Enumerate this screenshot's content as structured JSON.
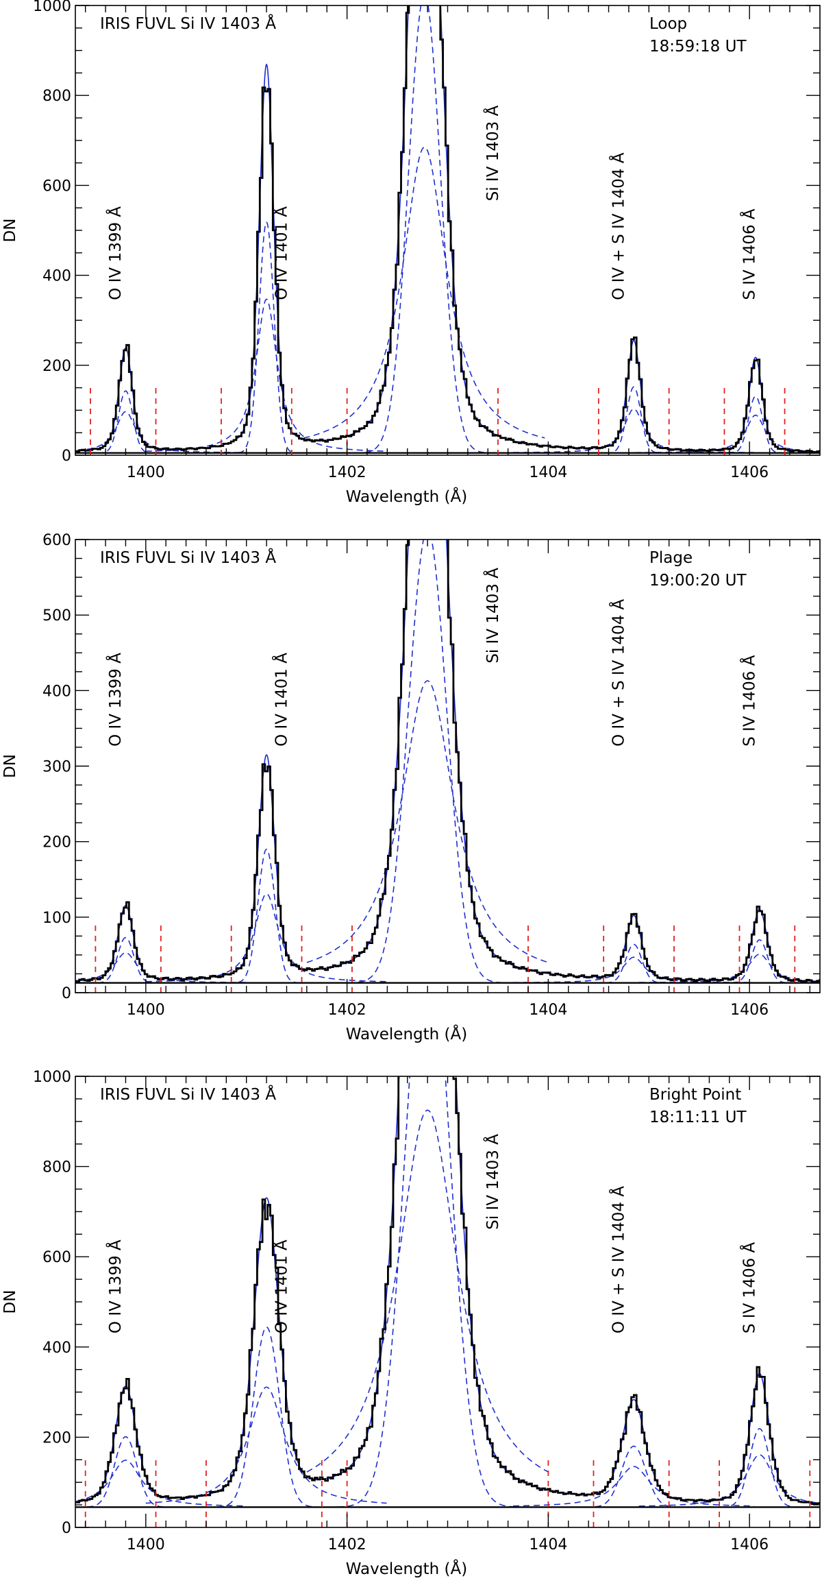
{
  "chart_data": [
    {
      "type": "line",
      "title": "IRIS FUVL Si IV 1403 Å",
      "region": "Loop",
      "time": "18:59:18 UT",
      "xlabel": "Wavelength (Å)",
      "ylabel": "DN",
      "xlim": [
        1399.3,
        1406.7
      ],
      "ylim": [
        0,
        1000
      ],
      "xticks": [
        1400,
        1402,
        1404,
        1406
      ],
      "yticks": [
        0,
        200,
        400,
        600,
        800,
        1000
      ],
      "baseline": 5,
      "fit_window_markers": [
        1399.45,
        1400.1,
        1400.75,
        1401.45,
        1402.0,
        1403.5,
        1404.5,
        1405.2,
        1405.75,
        1406.35
      ],
      "line_labels": [
        "O IV 1399 Å",
        "O IV 1401 Å",
        "Si IV 1403 Å",
        "O IV + S IV 1404 Å",
        "S IV 1406 Å"
      ],
      "line_components": [
        {
          "line": "O IV 1399 Å",
          "center": 1399.8,
          "peak": 230,
          "width": 0.07
        },
        {
          "line": "O IV 1401 Å",
          "center": 1401.2,
          "peak": 855,
          "width": 0.075
        },
        {
          "line": "Si IV 1403 Å",
          "center": 1402.77,
          "peak": 1700,
          "width": 0.16
        },
        {
          "line": "O IV + S IV 1404 Å",
          "center": 1404.85,
          "peak": 245,
          "width": 0.07
        },
        {
          "line": "S IV 1406 Å",
          "center": 1406.06,
          "peak": 210,
          "width": 0.07
        }
      ]
    },
    {
      "type": "line",
      "title": "IRIS FUVL Si IV 1403 Å",
      "region": "Plage",
      "time": "19:00:20 UT",
      "xlabel": "Wavelength (Å)",
      "ylabel": "DN",
      "xlim": [
        1399.3,
        1406.7
      ],
      "ylim": [
        0,
        600
      ],
      "xticks": [
        1400,
        1402,
        1404,
        1406
      ],
      "yticks": [
        0,
        100,
        200,
        300,
        400,
        500,
        600
      ],
      "baseline": 13,
      "fit_window_markers": [
        1399.5,
        1400.15,
        1400.85,
        1401.55,
        1402.05,
        1403.8,
        1404.55,
        1405.25,
        1405.9,
        1406.45
      ],
      "line_labels": [
        "O IV 1399 Å",
        "O IV 1401 Å",
        "Si IV 1403 Å",
        "O IV + S IV 1404 Å",
        "S IV 1406 Å"
      ],
      "line_components": [
        {
          "line": "O IV 1399 Å",
          "center": 1399.8,
          "peak": 100,
          "width": 0.08
        },
        {
          "line": "O IV 1401 Å",
          "center": 1401.2,
          "peak": 295,
          "width": 0.085
        },
        {
          "line": "Si IV 1403 Å",
          "center": 1402.8,
          "peak": 1000,
          "width": 0.19
        },
        {
          "line": "O IV + S IV 1404 Å",
          "center": 1404.85,
          "peak": 85,
          "width": 0.08
        },
        {
          "line": "S IV 1406 Å",
          "center": 1406.1,
          "peak": 95,
          "width": 0.08
        }
      ]
    },
    {
      "type": "line",
      "title": "IRIS FUVL Si IV 1403 Å",
      "region": "Bright Point",
      "time": "18:11:11 UT",
      "xlabel": "Wavelength (Å)",
      "ylabel": "DN",
      "xlim": [
        1399.3,
        1406.7
      ],
      "ylim": [
        0,
        1000
      ],
      "xticks": [
        1400,
        1402,
        1404,
        1406
      ],
      "yticks": [
        0,
        200,
        400,
        600,
        800,
        1000
      ],
      "baseline": 45,
      "fit_window_markers": [
        1399.4,
        1400.1,
        1400.6,
        1401.75,
        1402.0,
        1404.0,
        1404.45,
        1405.2,
        1405.7,
        1406.6
      ],
      "line_labels": [
        "O IV 1399 Å",
        "O IV 1401 Å",
        "Si IV 1403 Å",
        "O IV + S IV 1404 Å",
        "S IV 1406 Å"
      ],
      "line_components": [
        {
          "line": "O IV 1399 Å",
          "center": 1399.8,
          "peak": 260,
          "width": 0.11
        },
        {
          "line": "O IV 1401 Å",
          "center": 1401.2,
          "peak": 665,
          "width": 0.13
        },
        {
          "line": "Si IV 1403 Å",
          "center": 1402.8,
          "peak": 2200,
          "width": 0.22
        },
        {
          "line": "O IV + S IV 1404 Å",
          "center": 1404.85,
          "peak": 225,
          "width": 0.12
        },
        {
          "line": "S IV 1406 Å",
          "center": 1406.1,
          "peak": 290,
          "width": 0.1
        }
      ]
    }
  ]
}
